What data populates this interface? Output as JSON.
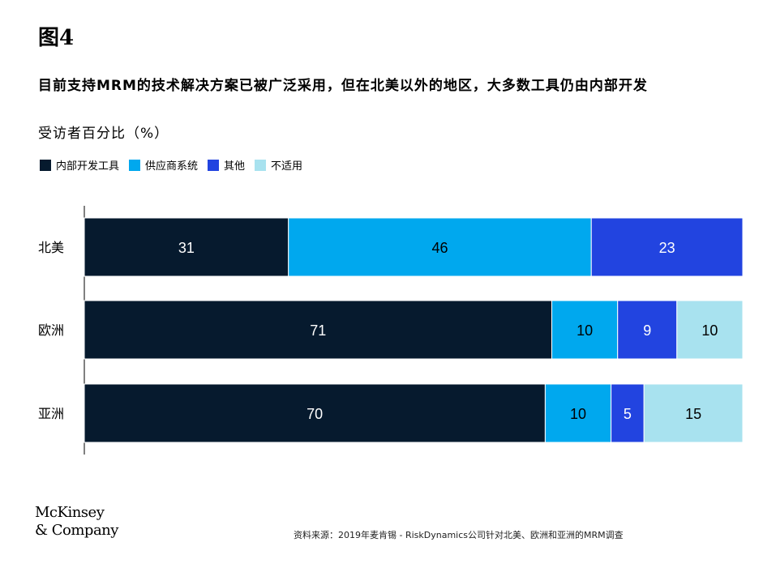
{
  "figure_label": "图4",
  "colors": {
    "internal": "#061a2e",
    "vendor": "#00a8ee",
    "other": "#2244e0",
    "na": "#a8e2ef"
  },
  "logo": {
    "line1": "McKinsey",
    "line2": "& Company"
  },
  "source": "资料来源：2019年麦肯锡 - RiskDynamics公司针对北美、欧洲和亚洲的MRM调查",
  "chart_data": {
    "type": "bar",
    "orientation": "horizontal",
    "stacked": true,
    "title": "目前支持MRM的技术解决方案已被广泛采用，但在北美以外的地区，大多数工具仍由内部开发",
    "subtitle": "受访者百分比（%）",
    "categories": [
      "北美",
      "欧洲",
      "亚洲"
    ],
    "series": [
      {
        "name": "内部开发工具",
        "color": "#061a2e",
        "label_color": "#ffffff",
        "values": [
          31,
          71,
          70
        ]
      },
      {
        "name": "供应商系统",
        "color": "#00a8ee",
        "label_color": "#000000",
        "values": [
          46,
          10,
          10
        ]
      },
      {
        "name": "其他",
        "color": "#2244e0",
        "label_color": "#ffffff",
        "values": [
          23,
          9,
          5
        ]
      },
      {
        "name": "不适用",
        "color": "#a8e2ef",
        "label_color": "#000000",
        "values": [
          0,
          10,
          15
        ]
      }
    ],
    "xlim": [
      0,
      100
    ],
    "legend_position": "top-left",
    "grid": false
  }
}
